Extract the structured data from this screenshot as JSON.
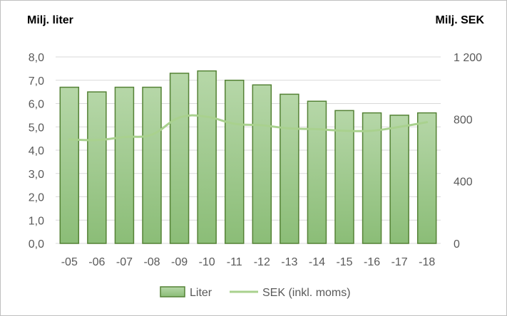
{
  "chart_data": {
    "type": "bar",
    "title": "",
    "ylabel_left": "Milj. liter",
    "ylabel_right": "Milj. SEK",
    "categories": [
      "-05",
      "-06",
      "-07",
      "-08",
      "-09",
      "-10",
      "-11",
      "-12",
      "-13",
      "-14",
      "-15",
      "-16",
      "-17",
      "-18"
    ],
    "series": [
      {
        "name": "Liter",
        "type": "bar",
        "axis": "left",
        "values": [
          6.7,
          6.5,
          6.7,
          6.7,
          7.3,
          7.4,
          7.0,
          6.8,
          6.4,
          6.1,
          5.7,
          5.6,
          5.5,
          5.6
        ]
      },
      {
        "name": "SEK (inkl. moms)",
        "type": "line",
        "axis": "right",
        "values": [
          670,
          665,
          685,
          700,
          810,
          815,
          770,
          760,
          740,
          735,
          725,
          725,
          750,
          780
        ]
      }
    ],
    "ylim_left": [
      0,
      8
    ],
    "yticks_left": [
      "0,0",
      "1,0",
      "2,0",
      "3,0",
      "4,0",
      "5,0",
      "6,0",
      "7,0",
      "8,0"
    ],
    "ylim_right": [
      0,
      1200
    ],
    "yticks_right": [
      "0",
      "400",
      "800",
      "1 200"
    ],
    "grid": true,
    "legend": "bottom",
    "colors": {
      "bar_fill_top": "#b6d7a8",
      "bar_fill_bottom": "#8bbd77",
      "bar_stroke": "#548235",
      "line": "#a9d18e",
      "grid": "#d9d9d9",
      "tick_text": "#595959"
    }
  }
}
